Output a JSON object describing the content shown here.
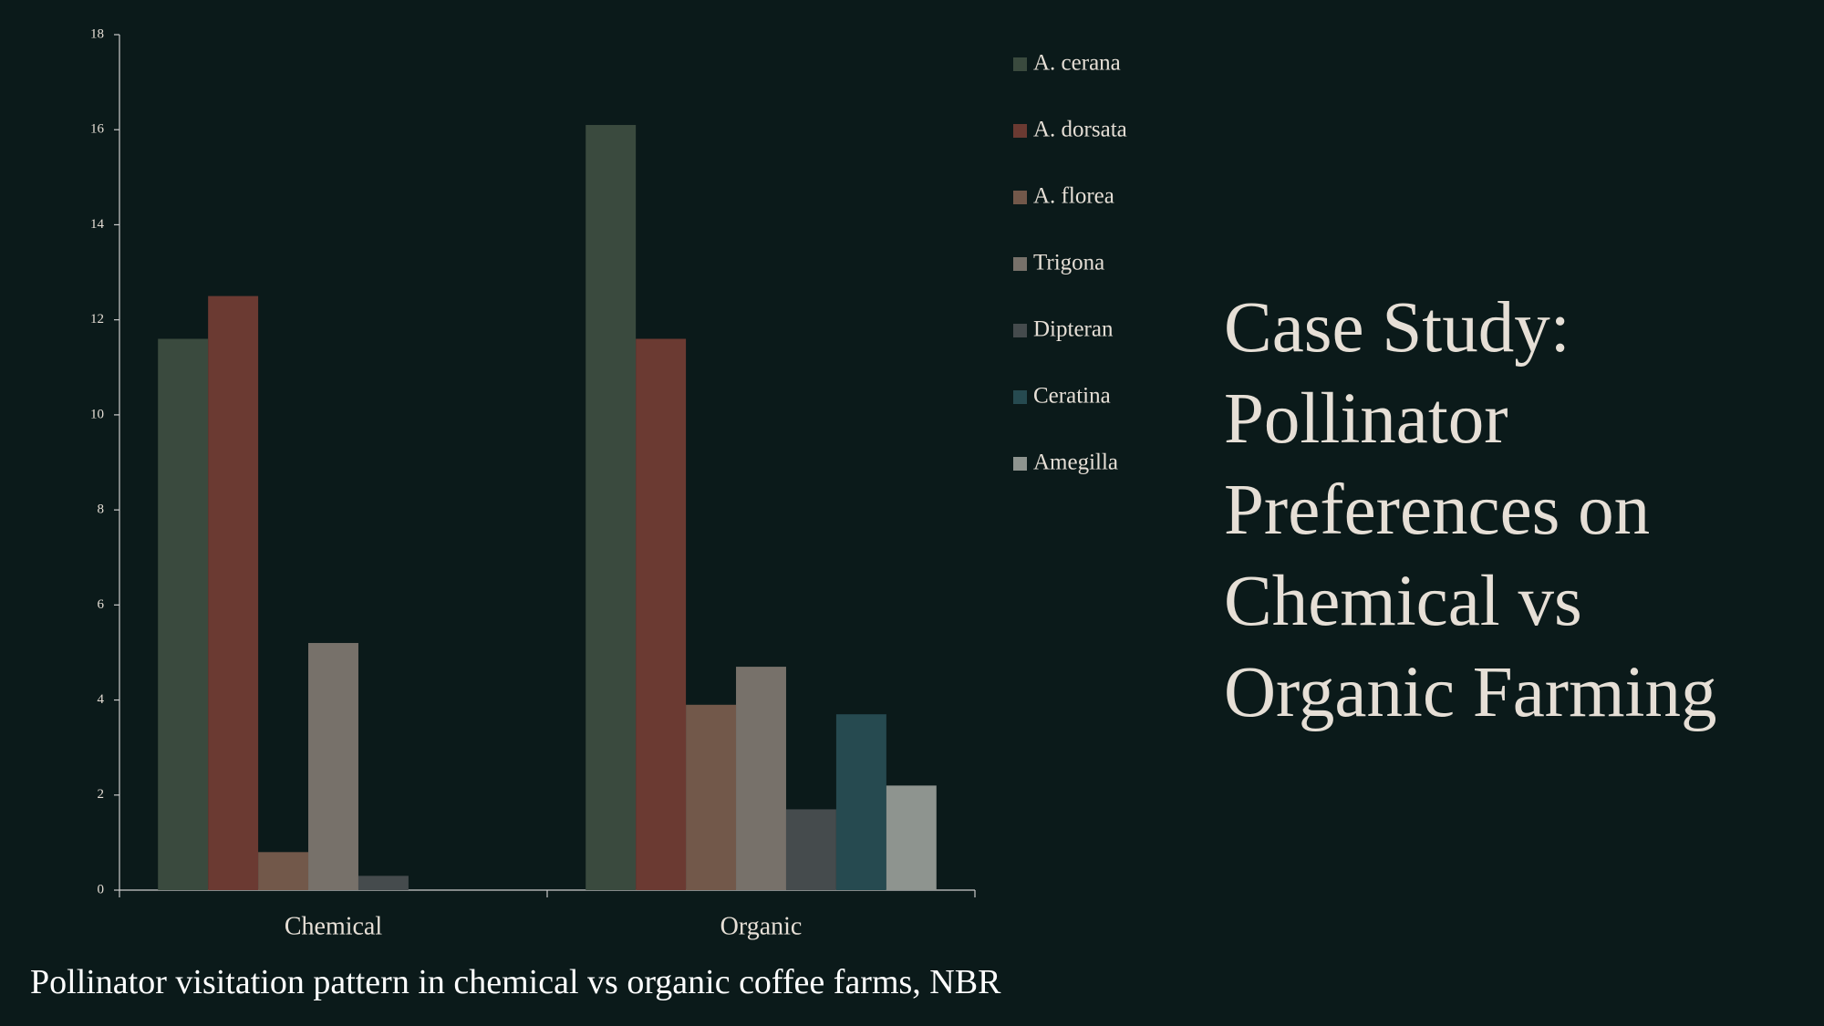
{
  "chart_data": {
    "type": "bar",
    "title": "Case Study: Pollinator Preferences on Chemical vs Organic Farming",
    "subtitle": "Pollinator visitation pattern in chemical vs organic coffee farms, NBR",
    "categories": [
      "Chemical",
      "Organic"
    ],
    "series": [
      {
        "name": "A. cerana",
        "color": "#3a4a3e",
        "values": [
          11.6,
          16.1
        ]
      },
      {
        "name": "A. dorsata",
        "color": "#6b3a32",
        "values": [
          12.5,
          11.6
        ]
      },
      {
        "name": "A. florea",
        "color": "#72584a",
        "values": [
          0.8,
          3.9
        ]
      },
      {
        "name": "Trigona",
        "color": "#77716a",
        "values": [
          5.2,
          4.7
        ]
      },
      {
        "name": "Dipteran",
        "color": "#454b4d",
        "values": [
          0.3,
          1.7
        ]
      },
      {
        "name": "Ceratina",
        "color": "#264a50",
        "values": [
          0,
          3.7
        ]
      },
      {
        "name": "Amegilla",
        "color": "#8e948f",
        "values": [
          0,
          2.2
        ]
      }
    ],
    "ylim": [
      0,
      18
    ],
    "yticks": [
      0,
      2,
      4,
      6,
      8,
      10,
      12,
      14,
      16,
      18
    ],
    "grid": false
  }
}
